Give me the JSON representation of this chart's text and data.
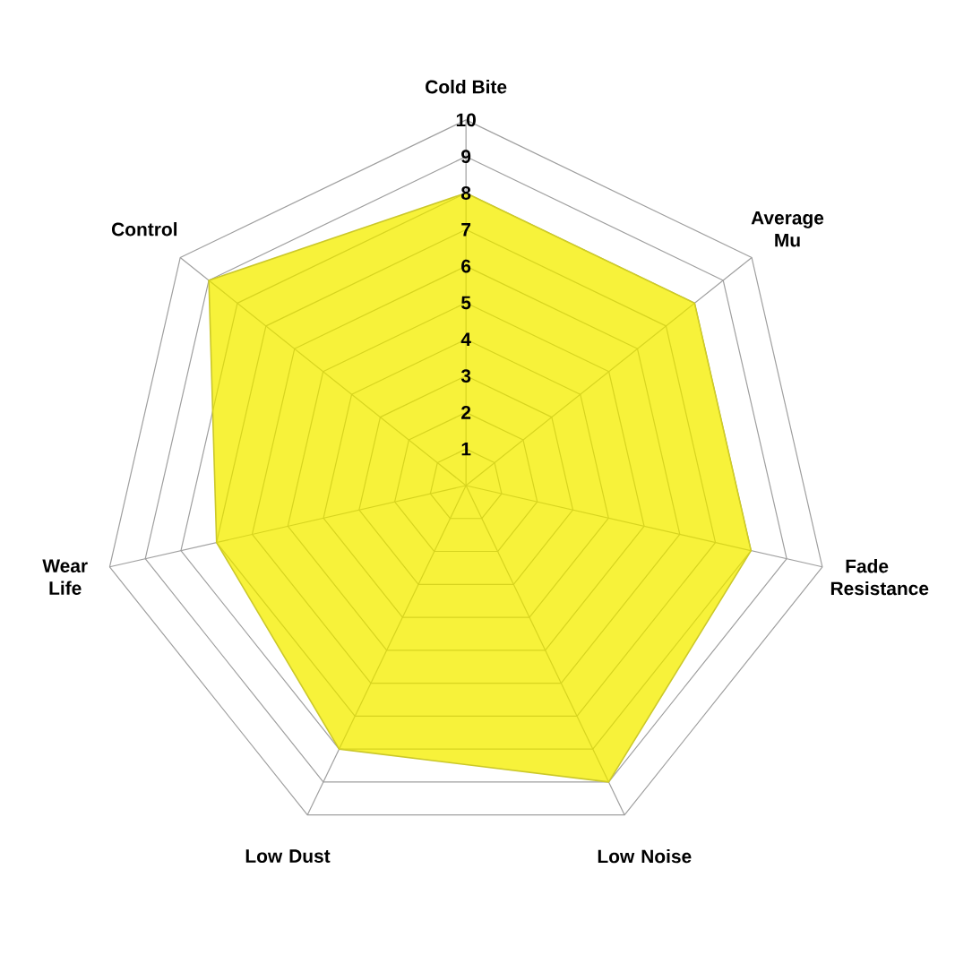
{
  "chart_data": {
    "type": "radar",
    "categories": [
      "Cold Bite",
      "Average Mu",
      "Fade Resistance",
      "Low Noise",
      "Low Dust",
      "Wear Life",
      "Control"
    ],
    "series": [
      {
        "color": "#f7f23a",
        "values": [
          8,
          8,
          8,
          9,
          8,
          7,
          9
        ]
      }
    ],
    "ylim": [
      0,
      10
    ],
    "yticks": [
      1,
      2,
      3,
      4,
      5,
      6,
      7,
      8,
      9,
      10
    ],
    "grid": true
  }
}
